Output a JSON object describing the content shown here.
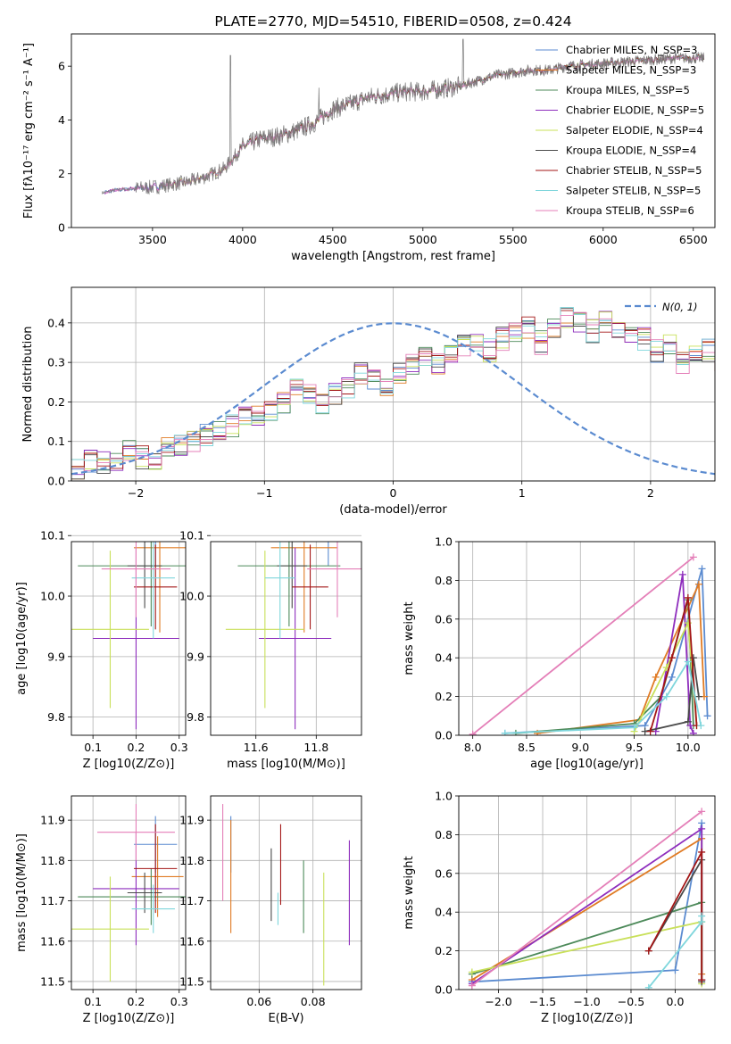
{
  "colors": {
    "c1": "#5b8bd0",
    "c2": "#e07b24",
    "c3": "#4d8a5a",
    "c4": "#8e2dbd",
    "c5": "#c9e05a",
    "c6": "#4a4a4a",
    "c7": "#a31616",
    "c8": "#7fd6dc",
    "c9": "#e47fb8",
    "normal": "#5b8bd0"
  },
  "chart_data": [
    {
      "id": "spectrum",
      "type": "line",
      "title": "PLATE=2770, MJD=54510, FIBERID=0508, z=0.424",
      "xlabel": "wavelength [Angstrom, rest frame]",
      "ylabel": "Flux [fλ10⁻¹⁷ erg cm⁻² s⁻¹ A⁻¹]",
      "xlim": [
        3050,
        6620
      ],
      "ylim": [
        0,
        7.2
      ],
      "xticks": [
        3500,
        4000,
        4500,
        5000,
        5500,
        6000,
        6500
      ],
      "yticks": [
        0,
        2,
        4,
        6
      ],
      "continuum": {
        "x": [
          3230,
          3300,
          3400,
          3500,
          3600,
          3700,
          3800,
          3900,
          4000,
          4100,
          4200,
          4300,
          4400,
          4500,
          4600,
          4700,
          4800,
          4900,
          5000,
          5100,
          5200,
          5300,
          5400,
          5500,
          5600,
          5700,
          5800,
          5900,
          6000,
          6100,
          6200,
          6300,
          6400,
          6500
        ],
        "y": [
          1.3,
          1.4,
          1.45,
          1.5,
          1.6,
          1.7,
          1.9,
          2.2,
          3.0,
          3.3,
          3.4,
          3.6,
          3.9,
          4.4,
          4.6,
          4.85,
          4.95,
          5.05,
          5.05,
          5.15,
          5.25,
          5.45,
          5.65,
          5.75,
          5.85,
          5.85,
          6.0,
          6.05,
          6.1,
          6.15,
          6.2,
          6.25,
          6.3,
          6.3
        ]
      },
      "series": [
        {
          "name": "Chabrier MILES, N_SSP=3"
        },
        {
          "name": "Salpeter MILES, N_SSP=3"
        },
        {
          "name": "Kroupa MILES, N_SSP=5"
        },
        {
          "name": "Chabrier ELODIE, N_SSP=5"
        },
        {
          "name": "Salpeter ELODIE, N_SSP=4"
        },
        {
          "name": "Kroupa ELODIE, N_SSP=4"
        },
        {
          "name": "Chabrier STELIB, N_SSP=5"
        },
        {
          "name": "Salpeter STELIB, N_SSP=5"
        },
        {
          "name": "Kroupa STELIB, N_SSP=6"
        }
      ],
      "legend": "upper-right"
    },
    {
      "id": "residuals",
      "type": "histogram",
      "xlabel": "(data-model)/error",
      "ylabel": "Normed distribution",
      "xlim": [
        -2.5,
        2.5
      ],
      "ylim": [
        0,
        0.49
      ],
      "xticks": [
        -2,
        -1,
        0,
        1,
        2
      ],
      "yticks": [
        0.0,
        0.1,
        0.2,
        0.3,
        0.4
      ],
      "bin_width": 0.1,
      "bin_start": -2.5,
      "histogram": [
        0.03,
        0.05,
        0.045,
        0.05,
        0.075,
        0.06,
        0.05,
        0.08,
        0.09,
        0.1,
        0.115,
        0.125,
        0.14,
        0.16,
        0.165,
        0.18,
        0.2,
        0.235,
        0.22,
        0.2,
        0.22,
        0.24,
        0.27,
        0.255,
        0.245,
        0.27,
        0.3,
        0.31,
        0.3,
        0.33,
        0.34,
        0.35,
        0.33,
        0.36,
        0.38,
        0.39,
        0.35,
        0.38,
        0.41,
        0.4,
        0.38,
        0.4,
        0.38,
        0.37,
        0.36,
        0.33,
        0.35,
        0.3,
        0.32,
        0.33,
        0.3,
        0.32,
        0.3,
        0.29,
        0.3,
        0.27,
        0.26,
        0.24,
        0.22,
        0.19,
        0.2,
        0.18,
        0.15,
        0.15,
        0.13,
        0.12,
        0.115,
        0.1,
        0.09,
        0.085,
        0.075,
        0.06,
        0.055,
        0.05,
        0.045,
        0.04,
        0.035,
        0.035,
        0.03,
        0.03
      ],
      "legend_label": "N(0, 1)",
      "legend": "upper-right"
    },
    {
      "id": "age-vs-Z",
      "type": "scatter",
      "xlabel": "Z [log10(Z/Z⊙)]",
      "ylabel": "age  [log10(age/yr)]",
      "xlim": [
        0.05,
        0.315
      ],
      "ylim": [
        9.77,
        10.09
      ],
      "xticks": [
        0.1,
        0.2,
        0.3
      ],
      "yticks": [
        9.8,
        9.9,
        10.0,
        10.1
      ],
      "points": [
        {
          "x": 0.245,
          "y": 10.11,
          "xerr": 0.05,
          "yerr": 0.06
        },
        {
          "x": 0.255,
          "y": 10.08,
          "xerr": 0.06,
          "yerr": 0.14
        },
        {
          "x": 0.235,
          "y": 10.05,
          "xerr": 0.17,
          "yerr": 0.1
        },
        {
          "x": 0.2,
          "y": 9.93,
          "xerr": 0.1,
          "yerr": 0.15
        },
        {
          "x": 0.14,
          "y": 9.945,
          "xerr": 0.09,
          "yerr": 0.13
        },
        {
          "x": 0.22,
          "y": 10.05,
          "xerr": 0.04,
          "yerr": 0.07
        },
        {
          "x": 0.245,
          "y": 10.015,
          "xerr": 0.05,
          "yerr": 0.07
        },
        {
          "x": 0.24,
          "y": 10.03,
          "xerr": 0.05,
          "yerr": 0.1
        },
        {
          "x": 0.2,
          "y": 10.045,
          "xerr": 0.08,
          "yerr": 0.08
        }
      ]
    },
    {
      "id": "age-vs-mass",
      "type": "scatter",
      "xlabel": "mass [log10(M/M⊙)]",
      "ylabel": "",
      "xlim": [
        11.45,
        11.95
      ],
      "ylim": [
        9.77,
        10.09
      ],
      "xticks": [
        11.6,
        11.8
      ],
      "yticks": [
        9.8,
        9.9,
        10.0,
        10.1
      ],
      "points": [
        {
          "x": 11.84,
          "y": 10.11,
          "xerr": 0.07,
          "yerr": 0.06
        },
        {
          "x": 11.76,
          "y": 10.08,
          "xerr": 0.11,
          "yerr": 0.14
        },
        {
          "x": 11.71,
          "y": 10.05,
          "xerr": 0.17,
          "yerr": 0.1
        },
        {
          "x": 11.73,
          "y": 9.93,
          "xerr": 0.12,
          "yerr": 0.15
        },
        {
          "x": 11.63,
          "y": 9.945,
          "xerr": 0.13,
          "yerr": 0.13
        },
        {
          "x": 11.72,
          "y": 10.05,
          "xerr": 0.05,
          "yerr": 0.07
        },
        {
          "x": 11.78,
          "y": 10.015,
          "xerr": 0.06,
          "yerr": 0.07
        },
        {
          "x": 11.68,
          "y": 10.03,
          "xerr": 0.05,
          "yerr": 0.1
        },
        {
          "x": 11.87,
          "y": 10.045,
          "xerr": 0.1,
          "yerr": 0.08
        }
      ]
    },
    {
      "id": "weight-vs-age",
      "type": "line",
      "xlabel": "age  [log10(age/yr)]",
      "ylabel": "mass weight",
      "xlim": [
        7.87,
        10.25
      ],
      "ylim": [
        0,
        1.0
      ],
      "xticks": [
        8.0,
        8.5,
        9.0,
        9.5,
        10.0
      ],
      "yticks": [
        0.0,
        0.2,
        0.4,
        0.6,
        0.8,
        1.0
      ],
      "series": [
        {
          "x": [
            8.3,
            9.6,
            9.85,
            10.13,
            10.18
          ],
          "y": [
            0.01,
            0.05,
            0.3,
            0.86,
            0.1
          ]
        },
        {
          "x": [
            8.6,
            9.55,
            9.7,
            10.1,
            10.15
          ],
          "y": [
            0.01,
            0.08,
            0.3,
            0.78,
            0.2
          ]
        },
        {
          "x": [
            8.4,
            9.5,
            9.75,
            10.0,
            10.05
          ],
          "y": [
            0.01,
            0.06,
            0.2,
            0.7,
            0.05
          ]
        },
        {
          "x": [
            9.7,
            9.95,
            10.02,
            10.05
          ],
          "y": [
            0.02,
            0.83,
            0.05,
            0.01
          ]
        },
        {
          "x": [
            9.5,
            9.8,
            10.0,
            10.08
          ],
          "y": [
            0.02,
            0.35,
            0.58,
            0.05
          ]
        },
        {
          "x": [
            9.6,
            10.0,
            10.05,
            10.1
          ],
          "y": [
            0.02,
            0.07,
            0.4,
            0.2
          ]
        },
        {
          "x": [
            9.65,
            9.85,
            10.0,
            10.08
          ],
          "y": [
            0.02,
            0.4,
            0.71,
            0.05
          ]
        },
        {
          "x": [
            8.3,
            9.5,
            9.8,
            10.0,
            10.12
          ],
          "y": [
            0.01,
            0.04,
            0.2,
            0.38,
            0.05
          ]
        },
        {
          "x": [
            8.0,
            10.05
          ],
          "y": [
            0.005,
            0.92
          ]
        }
      ]
    },
    {
      "id": "mass-vs-Z",
      "type": "scatter",
      "xlabel": "Z [log10(Z/Z⊙)]",
      "ylabel": "mass [log10(M/M⊙)]",
      "xlim": [
        0.05,
        0.315
      ],
      "ylim": [
        11.48,
        11.96
      ],
      "xticks": [
        0.1,
        0.2,
        0.3
      ],
      "yticks": [
        11.5,
        11.6,
        11.7,
        11.8,
        11.9
      ],
      "points": [
        {
          "x": 0.245,
          "y": 11.84,
          "xerr": 0.05,
          "yerr": 0.07
        },
        {
          "x": 0.25,
          "y": 11.76,
          "xerr": 0.06,
          "yerr": 0.1
        },
        {
          "x": 0.235,
          "y": 11.71,
          "xerr": 0.17,
          "yerr": 0.07
        },
        {
          "x": 0.2,
          "y": 11.73,
          "xerr": 0.1,
          "yerr": 0.14
        },
        {
          "x": 0.14,
          "y": 11.63,
          "xerr": 0.09,
          "yerr": 0.13
        },
        {
          "x": 0.22,
          "y": 11.72,
          "xerr": 0.04,
          "yerr": 0.05
        },
        {
          "x": 0.245,
          "y": 11.78,
          "xerr": 0.05,
          "yerr": 0.11
        },
        {
          "x": 0.24,
          "y": 11.68,
          "xerr": 0.05,
          "yerr": 0.06
        },
        {
          "x": 0.2,
          "y": 11.87,
          "xerr": 0.09,
          "yerr": 0.07
        }
      ]
    },
    {
      "id": "mass-vs-EBV",
      "type": "scatter",
      "xlabel": "E(B-V)",
      "ylabel": "",
      "xlim": [
        0.042,
        0.098
      ],
      "ylim": [
        11.48,
        11.96
      ],
      "xticks": [
        0.06,
        0.08
      ],
      "yticks": [
        11.5,
        11.6,
        11.7,
        11.8,
        11.9
      ],
      "points": [
        {
          "x": 0.0495,
          "y": 11.84,
          "yerr": 0.07
        },
        {
          "x": 0.0495,
          "y": 11.76,
          "yerr": 0.14
        },
        {
          "x": 0.0765,
          "y": 11.71,
          "yerr": 0.09
        },
        {
          "x": 0.0935,
          "y": 11.72,
          "yerr": 0.13
        },
        {
          "x": 0.084,
          "y": 11.63,
          "yerr": 0.14
        },
        {
          "x": 0.0645,
          "y": 11.74,
          "yerr": 0.09
        },
        {
          "x": 0.068,
          "y": 11.79,
          "yerr": 0.1
        },
        {
          "x": 0.067,
          "y": 11.68,
          "yerr": 0.04
        },
        {
          "x": 0.0465,
          "y": 11.82,
          "yerr": 0.12
        }
      ]
    },
    {
      "id": "weight-vs-Z",
      "type": "line",
      "xlabel": "Z [log10(Z/Z⊙)]",
      "ylabel": "mass weight",
      "xlim": [
        -2.45,
        0.45
      ],
      "ylim": [
        0,
        1.0
      ],
      "xticks": [
        -2.0,
        -1.5,
        -1.0,
        -0.5,
        0.0
      ],
      "yticks": [
        0.0,
        0.2,
        0.4,
        0.6,
        0.8,
        1.0
      ],
      "series": [
        {
          "x": [
            -2.3,
            0.0,
            0.3,
            0.3
          ],
          "y": [
            0.04,
            0.1,
            0.86,
            0.05
          ]
        },
        {
          "x": [
            -2.3,
            0.3,
            0.3
          ],
          "y": [
            0.05,
            0.78,
            0.08
          ]
        },
        {
          "x": [
            -2.3,
            0.3,
            0.3
          ],
          "y": [
            0.08,
            0.45,
            0.05
          ]
        },
        {
          "x": [
            -2.3,
            0.3,
            0.3
          ],
          "y": [
            0.03,
            0.83,
            0.05
          ]
        },
        {
          "x": [
            -2.3,
            0.3,
            0.3
          ],
          "y": [
            0.09,
            0.35,
            0.03
          ]
        },
        {
          "x": [
            -0.3,
            0.3,
            0.3
          ],
          "y": [
            0.2,
            0.67,
            0.04
          ]
        },
        {
          "x": [
            -0.3,
            0.3,
            0.3
          ],
          "y": [
            0.2,
            0.71,
            0.05
          ]
        },
        {
          "x": [
            -0.3,
            0.3,
            0.3
          ],
          "y": [
            0.01,
            0.35,
            0.38
          ]
        },
        {
          "x": [
            -2.3,
            0.3
          ],
          "y": [
            0.02,
            0.92
          ]
        }
      ]
    }
  ]
}
